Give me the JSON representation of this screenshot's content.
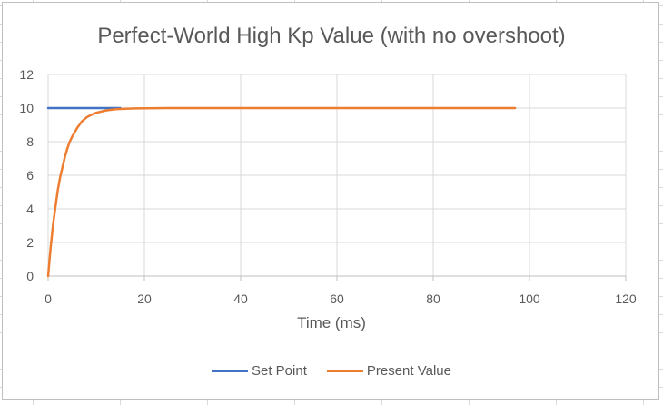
{
  "chart_data": {
    "type": "line",
    "title": "Perfect-World High Kp Value (with no overshoot)",
    "xlabel": "Time (ms)",
    "ylabel": "",
    "xlim": [
      0,
      120
    ],
    "ylim": [
      0,
      12
    ],
    "x_ticks": [
      0,
      20,
      40,
      60,
      80,
      100,
      120
    ],
    "y_ticks": [
      0,
      2,
      4,
      6,
      8,
      10,
      12
    ],
    "grid": true,
    "legend_position": "bottom",
    "series": [
      {
        "name": "Set Point",
        "color": "#4472C4",
        "x": [
          0,
          15
        ],
        "y": [
          10,
          10
        ]
      },
      {
        "name": "Present Value",
        "color": "#ED7D31",
        "x": [
          0,
          0.5,
          1,
          1.5,
          2,
          2.5,
          3,
          3.5,
          4,
          4.5,
          5,
          6,
          7,
          8,
          9,
          10,
          12,
          14,
          16,
          18,
          20,
          25,
          30,
          40,
          50,
          60,
          70,
          80,
          90,
          97
        ],
        "y": [
          0,
          1.6,
          3.0,
          4.1,
          5.1,
          5.9,
          6.5,
          7.1,
          7.6,
          8.0,
          8.3,
          8.8,
          9.2,
          9.45,
          9.6,
          9.72,
          9.86,
          9.93,
          9.96,
          9.98,
          9.99,
          10,
          10,
          10,
          10,
          10,
          10,
          10,
          10,
          10
        ]
      }
    ]
  }
}
